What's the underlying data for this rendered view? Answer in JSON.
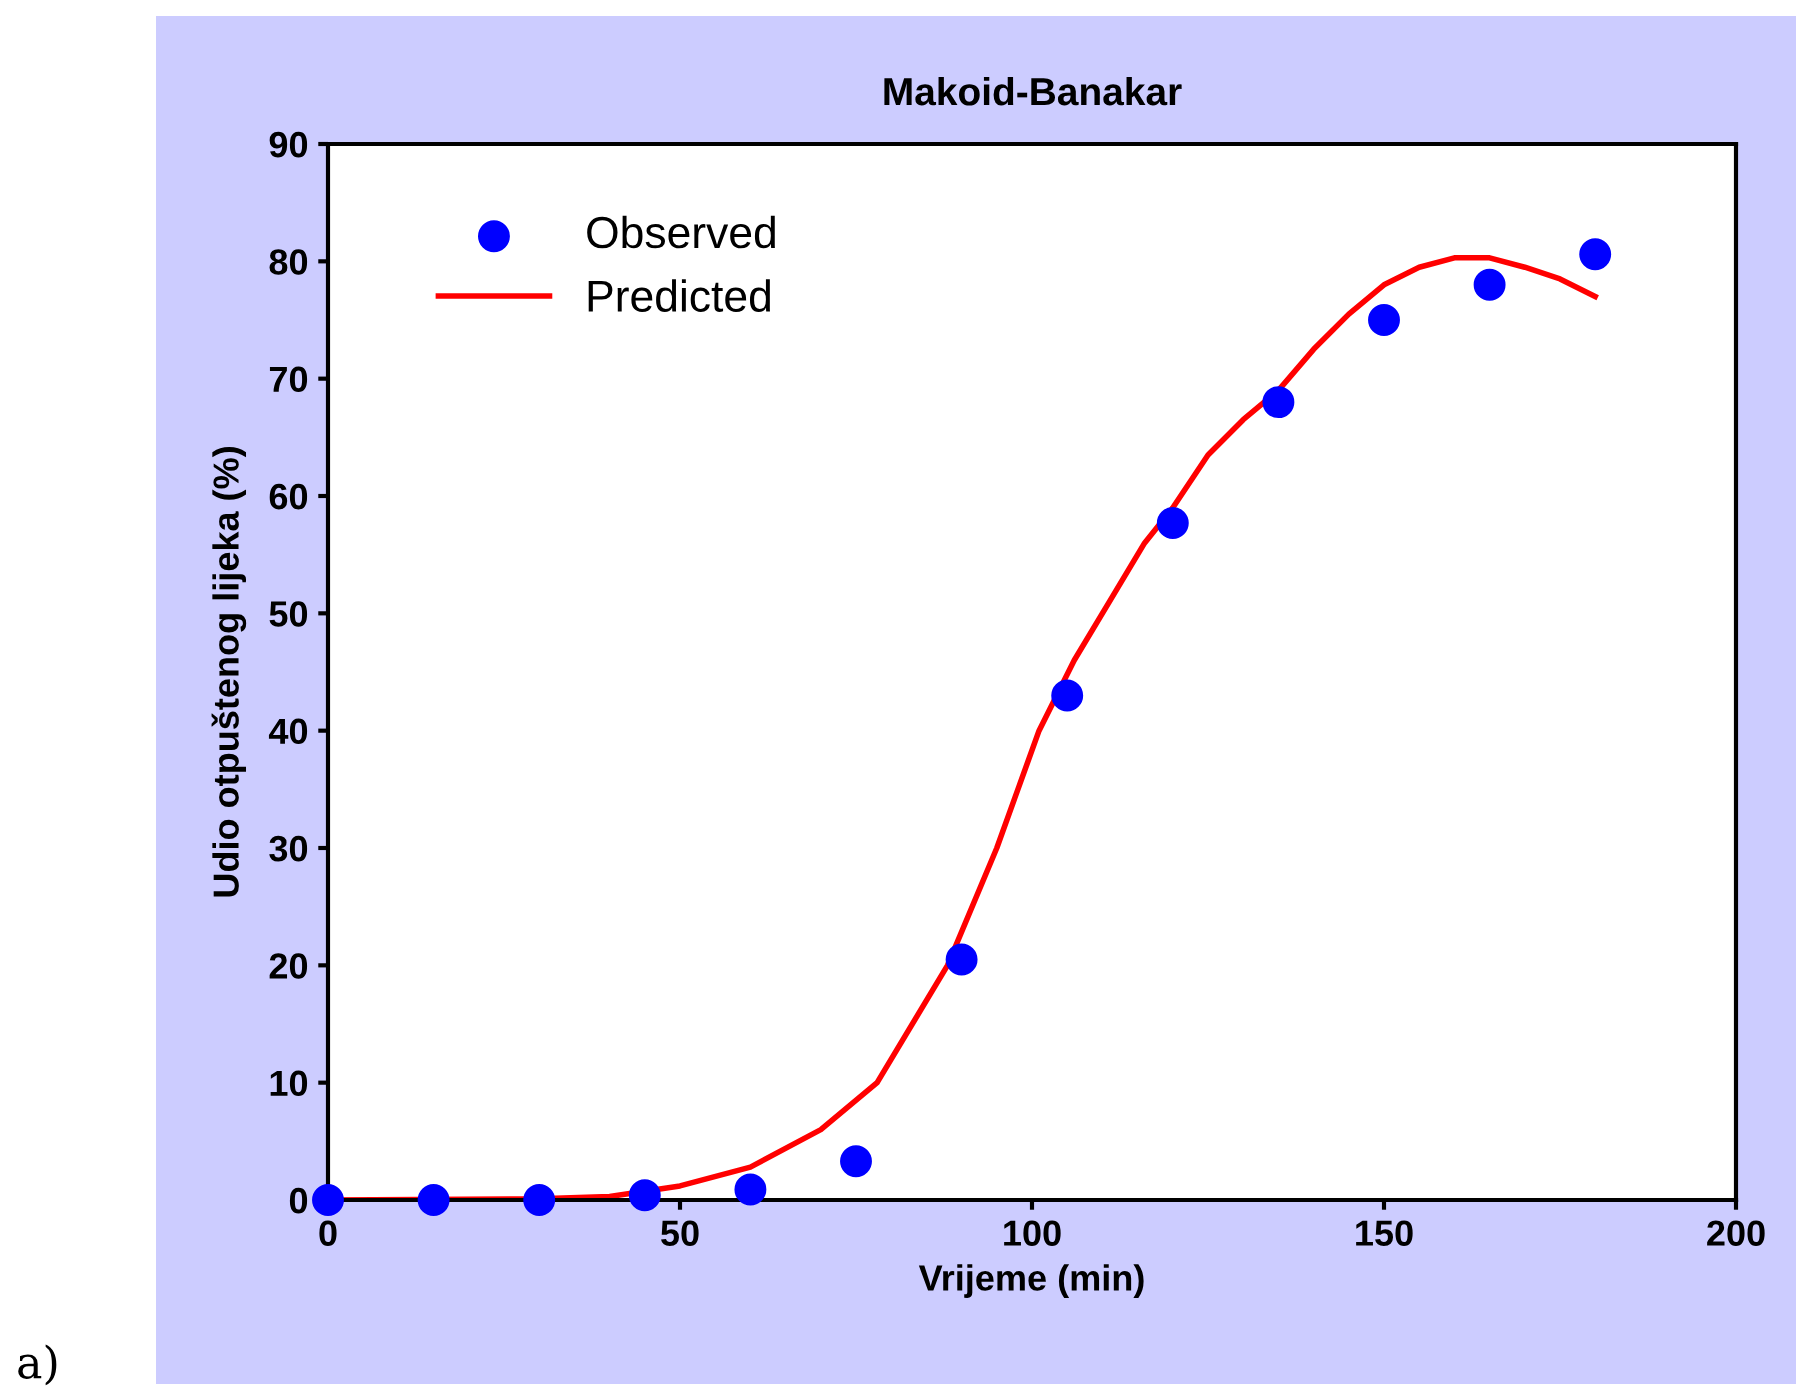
{
  "chart_data": {
    "type": "scatter",
    "title": "Makoid-Banakar",
    "xlabel": "Vrijeme (min)",
    "ylabel": "Udio otpuštenog lijeka (%)",
    "series": [
      {
        "name": "Observed",
        "color": "#0000ff",
        "marker": "circle",
        "x": [
          0,
          15,
          30,
          45,
          60,
          75,
          90,
          105,
          120,
          135,
          150,
          165,
          180
        ],
        "values": [
          0,
          0,
          0,
          0.4,
          0.9,
          3.3,
          20.5,
          43,
          57.7,
          68,
          75,
          78,
          80.6
        ]
      },
      {
        "name": "Predicted",
        "type": "line",
        "color": "#ff0000",
        "marker": "none",
        "line_style": "solid",
        "x": [
          0,
          30,
          40,
          50,
          60,
          70,
          78,
          88,
          95,
          101,
          106,
          111,
          116,
          120,
          125,
          130,
          135,
          140,
          145,
          150,
          155,
          160,
          165,
          170,
          175,
          180
        ],
        "values": [
          0,
          0.1,
          0.3,
          1.2,
          2.8,
          6,
          10,
          20,
          30,
          40,
          46,
          51,
          56,
          59,
          63.5,
          66.5,
          69,
          72.5,
          75.5,
          78,
          79.5,
          80.3,
          80.3,
          79.5,
          78.5,
          77
        ]
      }
    ],
    "xlim": [
      0,
      200
    ],
    "xticks": [
      0,
      50,
      100,
      150,
      200
    ],
    "ylim": [
      0,
      90
    ],
    "yticks": [
      0,
      10,
      20,
      30,
      40,
      50,
      60,
      70,
      80,
      90
    ],
    "grid": false,
    "legend": "top left",
    "annotations": [
      "a)"
    ]
  }
}
